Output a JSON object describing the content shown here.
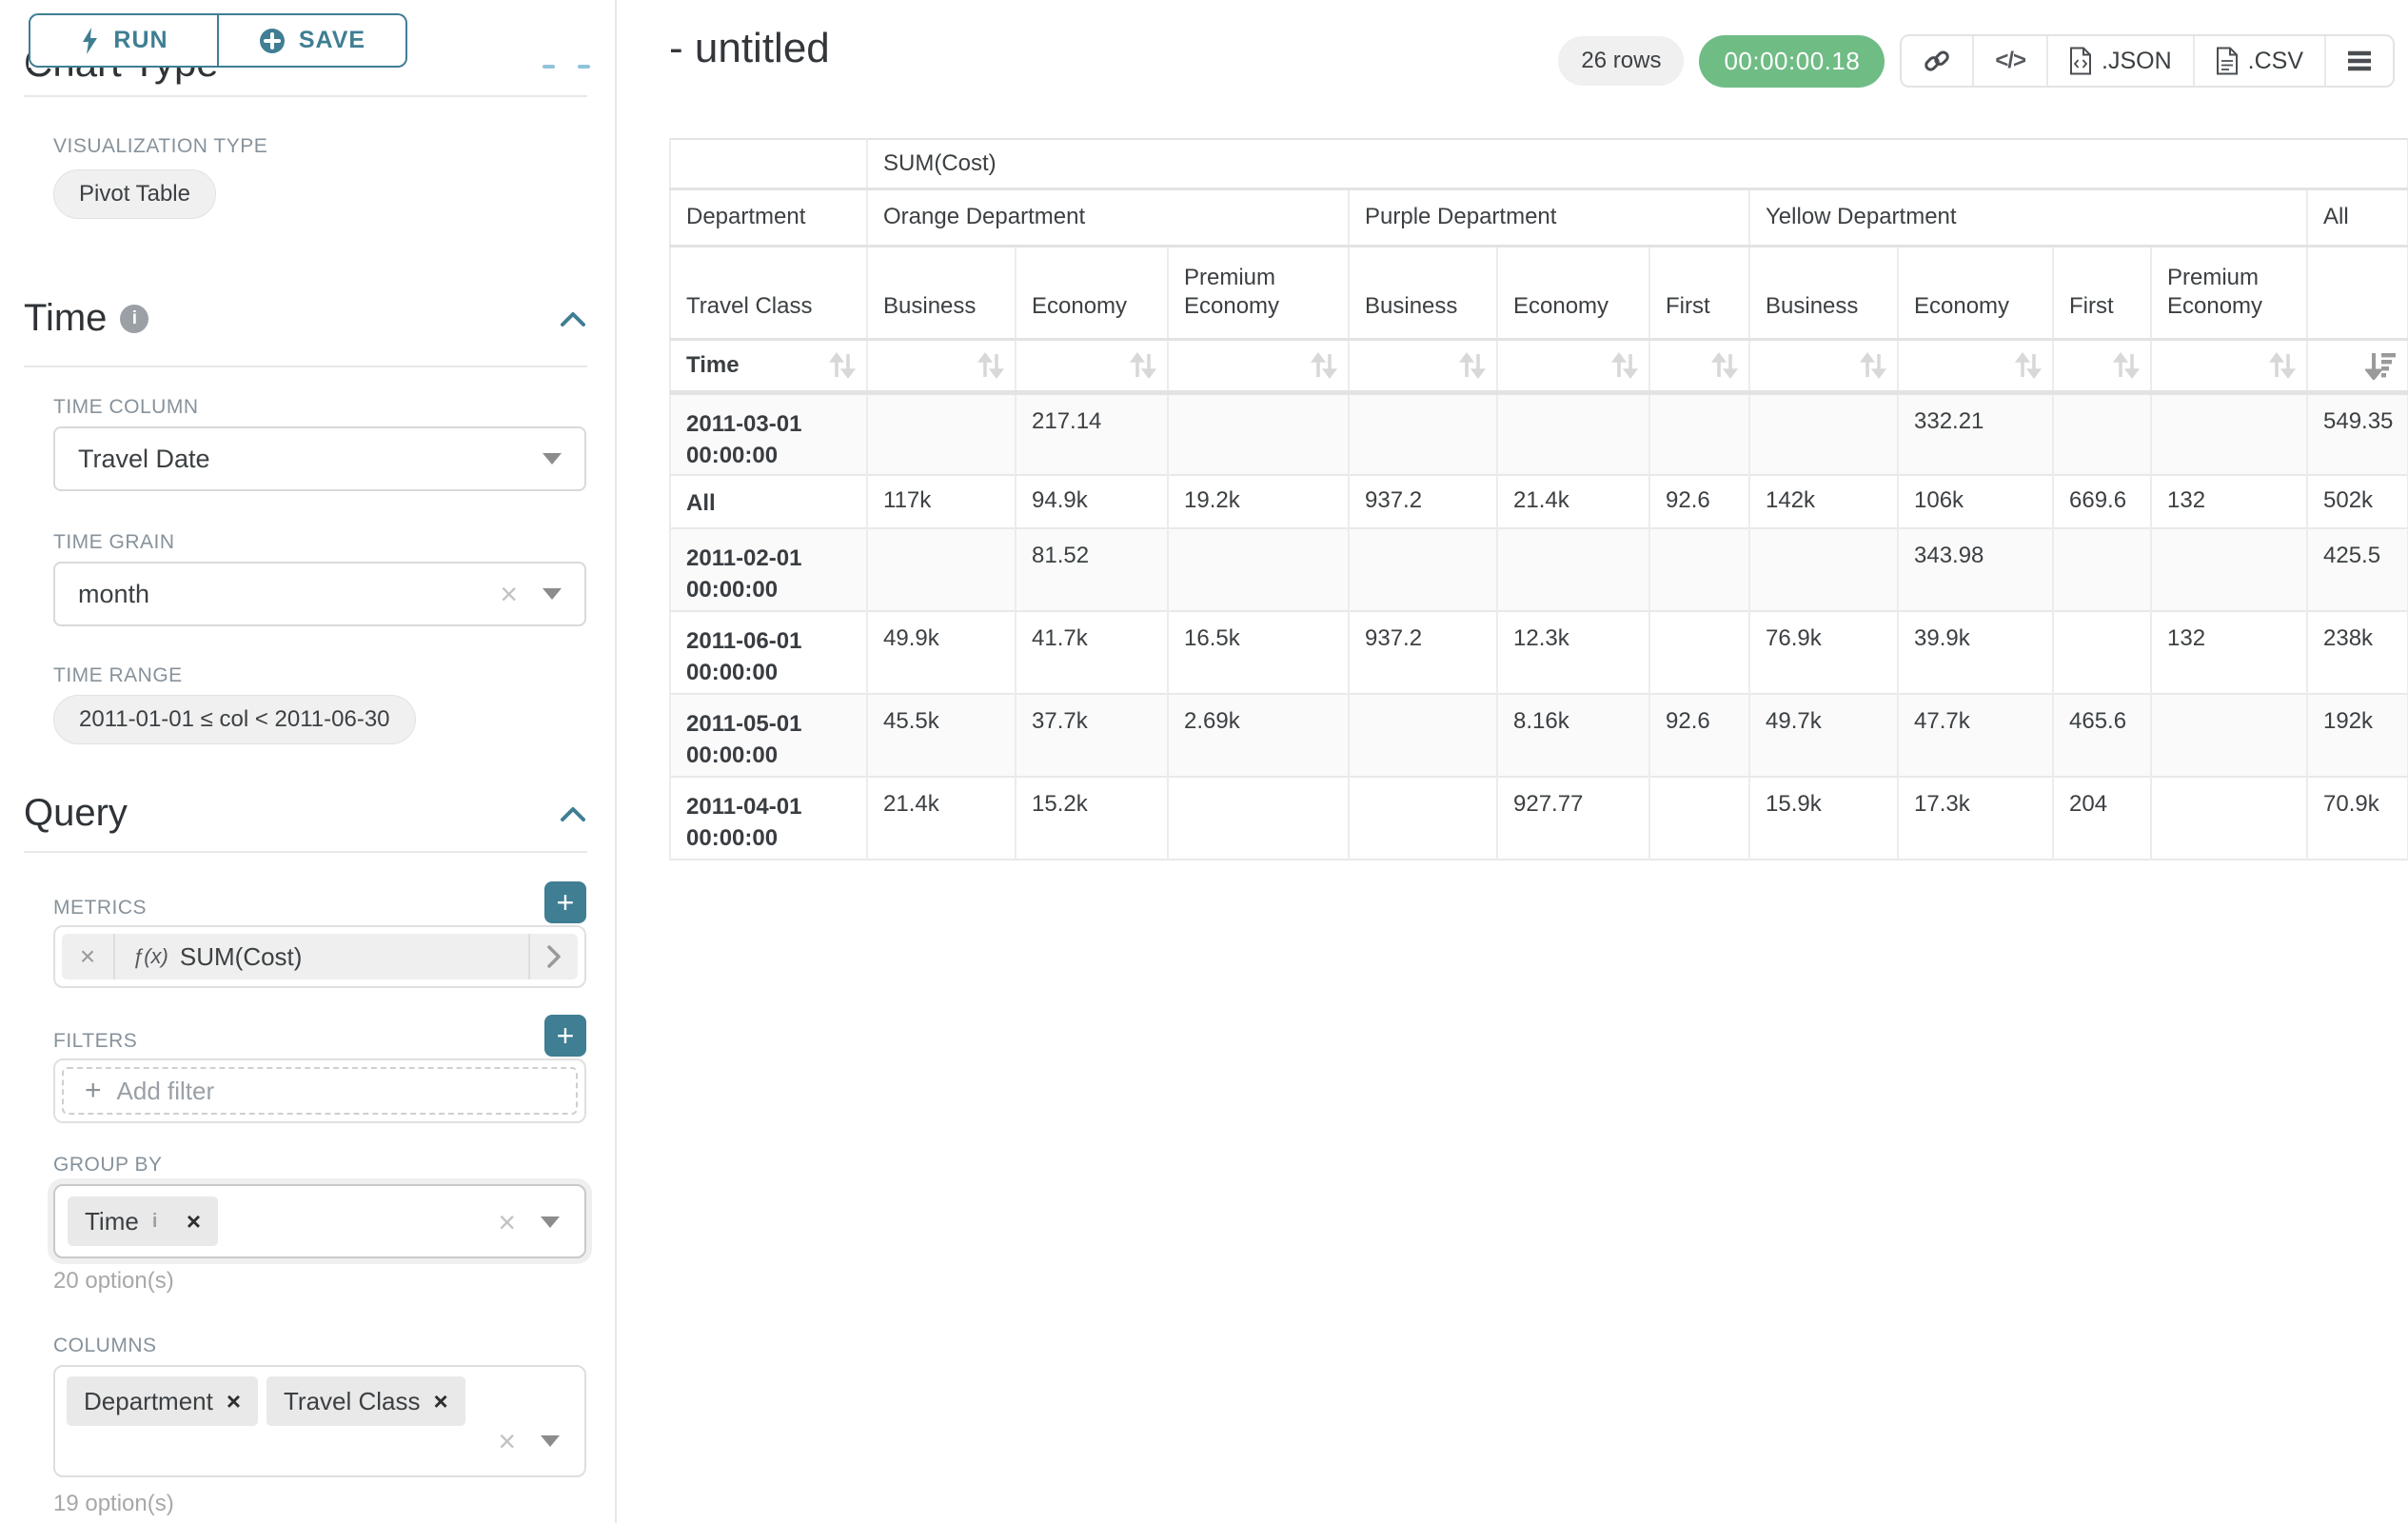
{
  "sidebar": {
    "run_label": "RUN",
    "save_label": "SAVE",
    "chart_type_heading": "Chart Type",
    "visualization_type_label": "VISUALIZATION TYPE",
    "visualization_type_value": "Pivot Table",
    "time_section": {
      "title": "Time",
      "time_column_label": "TIME COLUMN",
      "time_column_value": "Travel Date",
      "time_grain_label": "TIME GRAIN",
      "time_grain_value": "month",
      "time_range_label": "TIME RANGE",
      "time_range_value": "2011-01-01 ≤ col < 2011-06-30"
    },
    "query_section": {
      "title": "Query",
      "metrics_label": "METRICS",
      "metric_fx": "ƒ(x)",
      "metric_value": "SUM(Cost)",
      "filters_label": "FILTERS",
      "add_filter_label": "Add filter",
      "group_by_label": "GROUP BY",
      "group_by_value": "Time",
      "group_by_options_note": "20 option(s)",
      "columns_label": "COLUMNS",
      "columns_values": [
        "Department",
        "Travel Class"
      ],
      "columns_options_note": "19 option(s)"
    }
  },
  "header": {
    "title": "- untitled",
    "row_count_badge": "26 rows",
    "elapsed_badge": "00:00:00.18",
    "json_button": ".JSON",
    "csv_button": ".CSV"
  },
  "pivot_table": {
    "metric_header": "SUM(Cost)",
    "department_label": "Department",
    "travel_class_label": "Travel Class",
    "time_label": "Time",
    "department_groups": [
      {
        "label": "Orange Department",
        "span": 3
      },
      {
        "label": "Purple Department",
        "span": 3
      },
      {
        "label": "Yellow Department",
        "span": 4
      },
      {
        "label": "All",
        "span": 1
      }
    ],
    "travel_classes": [
      "Business",
      "Economy",
      "Premium Economy",
      "Business",
      "Economy",
      "First",
      "Business",
      "Economy",
      "First",
      "Premium Economy",
      ""
    ],
    "rows": [
      {
        "label": "2011-03-01 00:00:00",
        "values": [
          "",
          "217.14",
          "",
          "",
          "",
          "",
          "",
          "332.21",
          "",
          "",
          "549.35"
        ]
      },
      {
        "label": "All",
        "values": [
          "117k",
          "94.9k",
          "19.2k",
          "937.2",
          "21.4k",
          "92.6",
          "142k",
          "106k",
          "669.6",
          "132",
          "502k"
        ]
      },
      {
        "label": "2011-02-01 00:00:00",
        "values": [
          "",
          "81.52",
          "",
          "",
          "",
          "",
          "",
          "343.98",
          "",
          "",
          "425.5"
        ]
      },
      {
        "label": "2011-06-01 00:00:00",
        "values": [
          "49.9k",
          "41.7k",
          "16.5k",
          "937.2",
          "12.3k",
          "",
          "76.9k",
          "39.9k",
          "",
          "132",
          "238k"
        ]
      },
      {
        "label": "2011-05-01 00:00:00",
        "values": [
          "45.5k",
          "37.7k",
          "2.69k",
          "",
          "8.16k",
          "92.6",
          "49.7k",
          "47.7k",
          "465.6",
          "",
          "192k"
        ]
      },
      {
        "label": "2011-04-01 00:00:00",
        "values": [
          "21.4k",
          "15.2k",
          "",
          "",
          "927.77",
          "",
          "15.9k",
          "17.3k",
          "204",
          "",
          "70.9k"
        ]
      }
    ]
  },
  "colors": {
    "accent_teal": "#3f7e93",
    "elapsed_green": "#6fbc85"
  }
}
